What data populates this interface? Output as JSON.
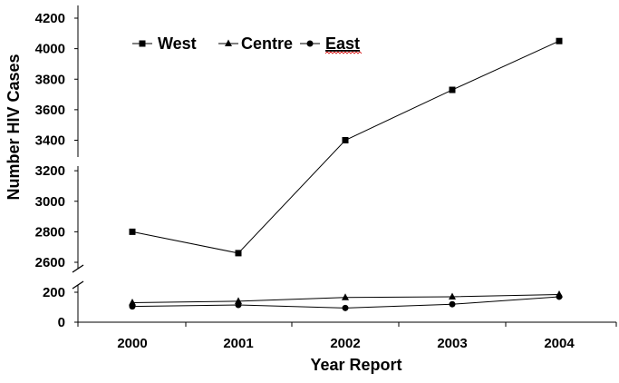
{
  "chart_data": {
    "type": "line",
    "xlabel": "Year Report",
    "ylabel": "Number HIV Cases",
    "categories": [
      "2000",
      "2001",
      "2002",
      "2003",
      "2004"
    ],
    "y_axis_broken": true,
    "upper_ylim": [
      2600,
      4200
    ],
    "upper_yticks": [
      "2600",
      "2800",
      "3000",
      "3200",
      "3400",
      "3600",
      "3800",
      "4000",
      "4200"
    ],
    "lower_ylim": [
      0,
      200
    ],
    "lower_yticks": [
      "0",
      "200"
    ],
    "legend_position": "top-left, horizontal",
    "grid": false,
    "series": [
      {
        "name": "West",
        "marker": "square",
        "values": [
          2800,
          2660,
          3400,
          3730,
          4050
        ]
      },
      {
        "name": "Centre",
        "marker": "triangle",
        "values": [
          130,
          140,
          165,
          170,
          185
        ]
      },
      {
        "name": "East",
        "marker": "circle",
        "values": [
          105,
          115,
          95,
          120,
          170
        ]
      }
    ]
  }
}
